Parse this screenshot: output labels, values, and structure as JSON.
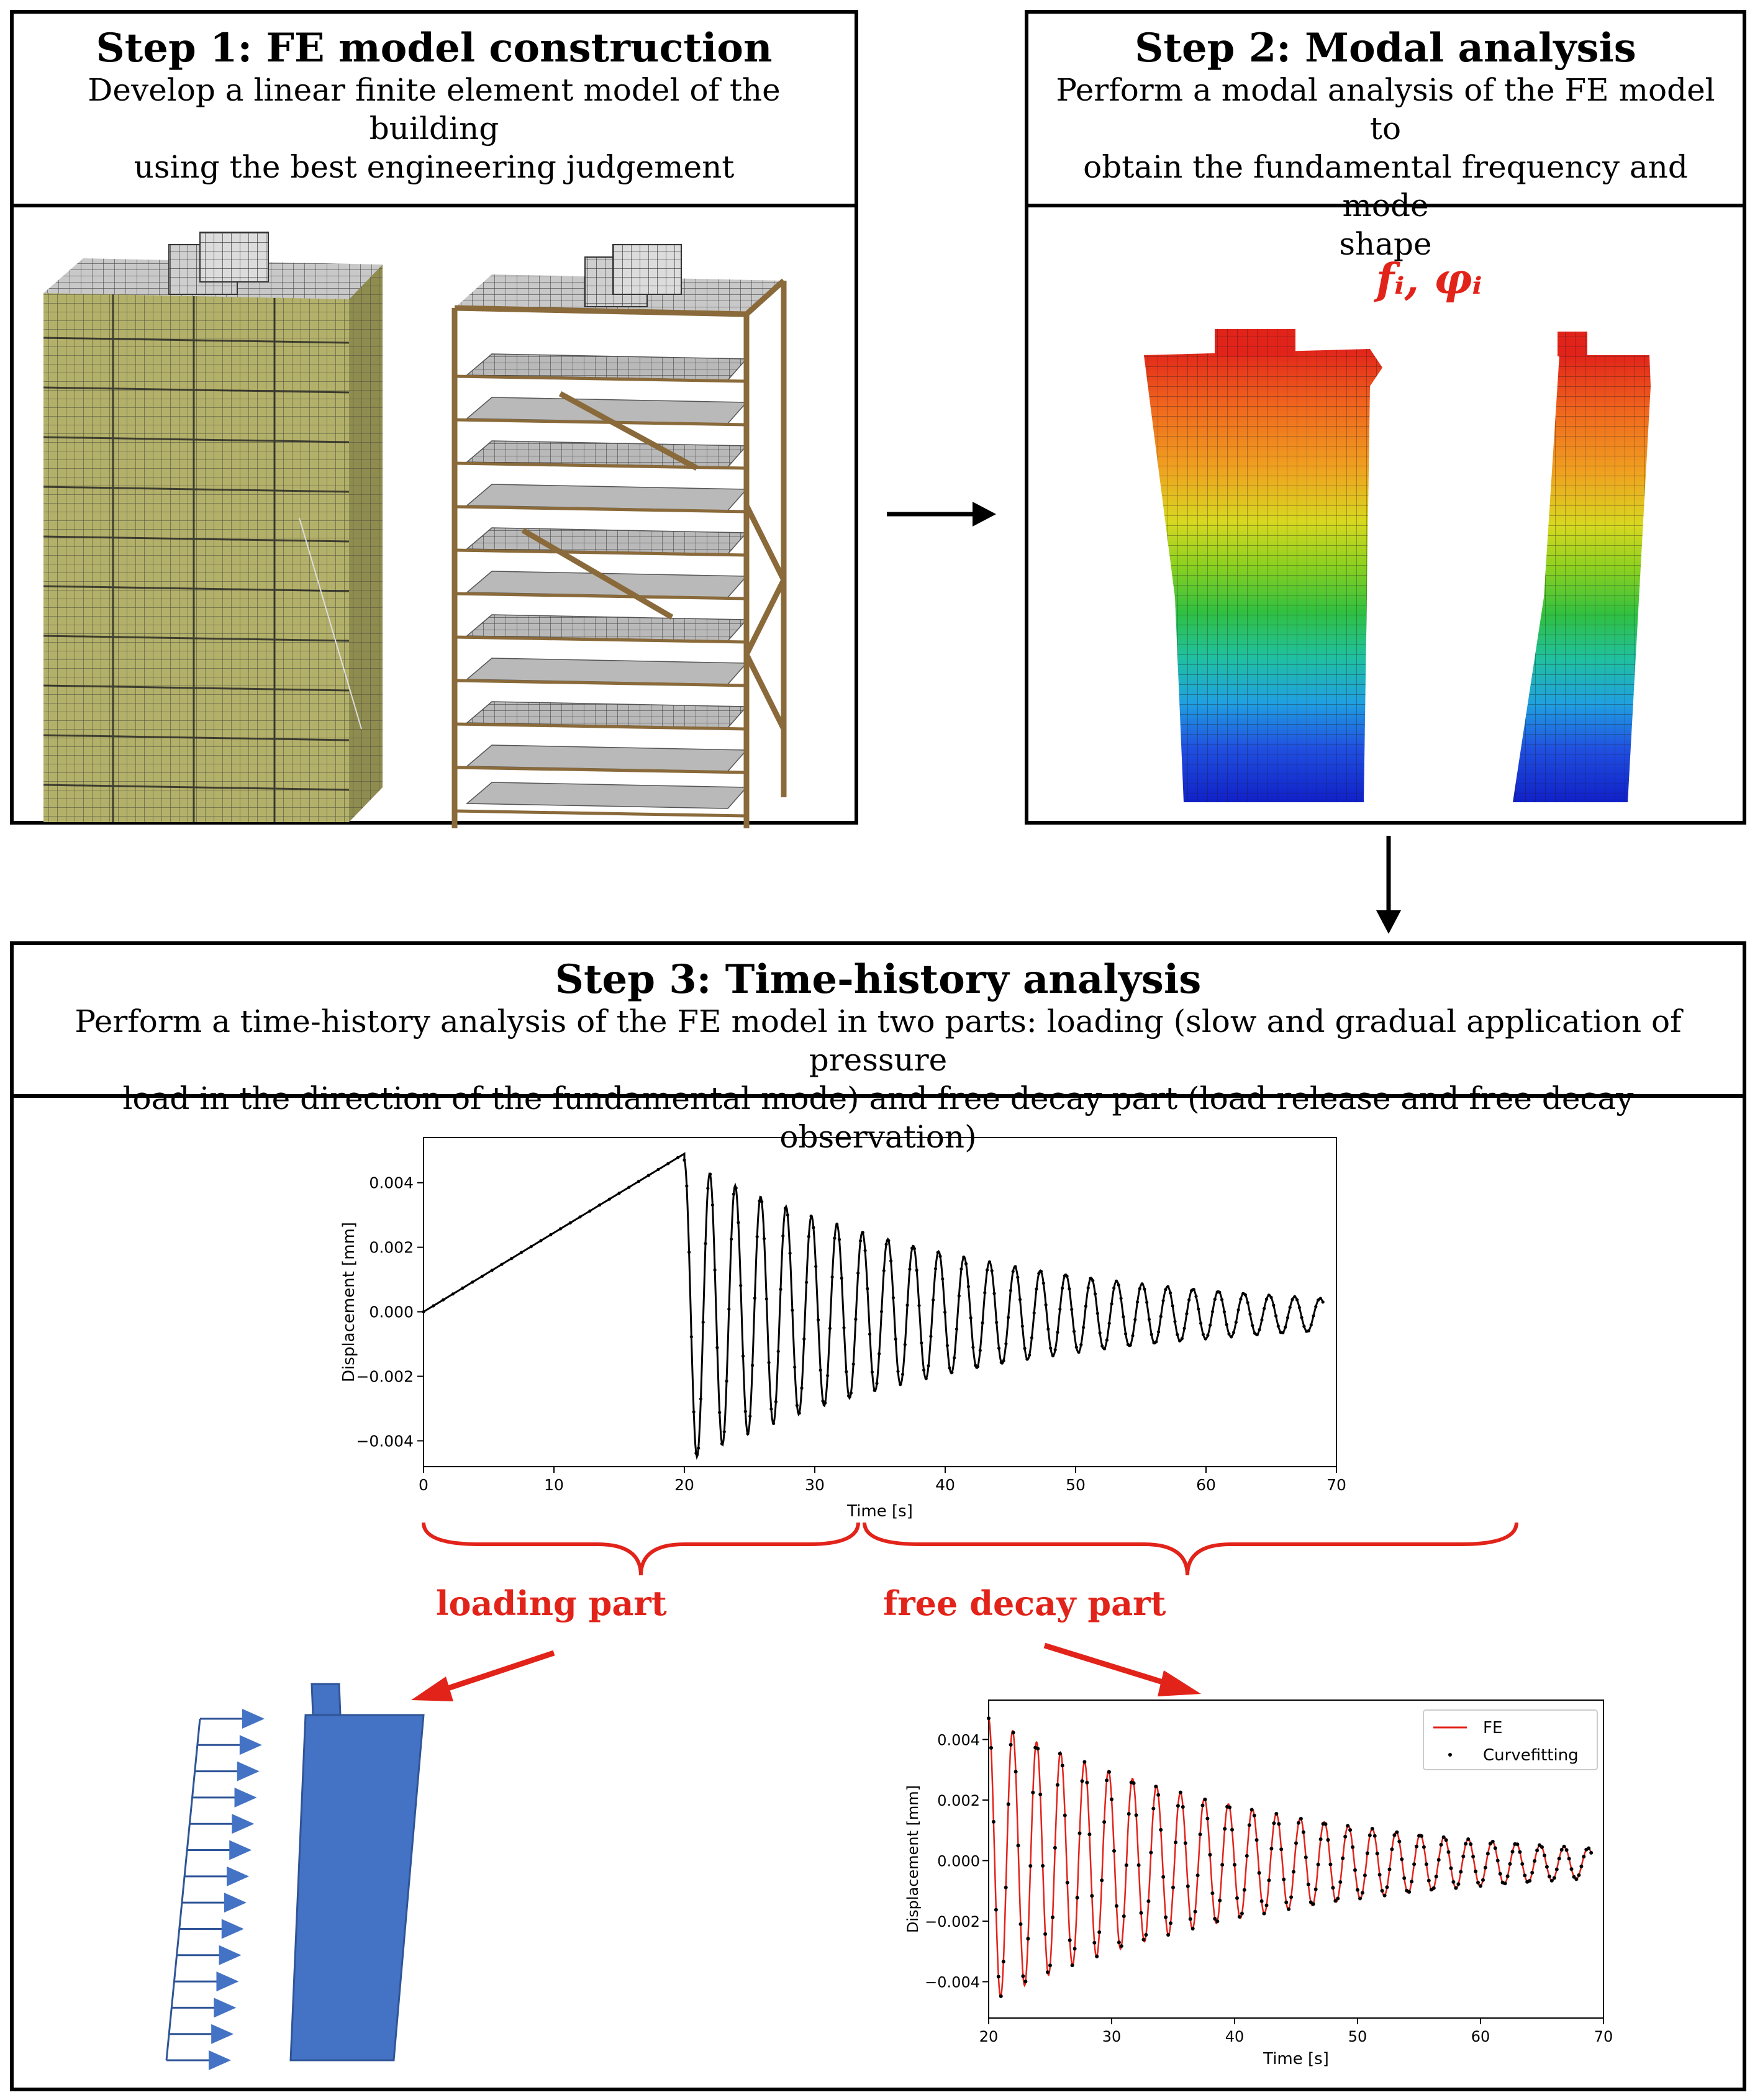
{
  "step1": {
    "title": "Step 1: FE model construction",
    "desc_line1": "Develop a linear finite element model of the building",
    "desc_line2": "using the best engineering judgement"
  },
  "step2": {
    "title": "Step 2: Modal analysis",
    "desc_line1": "Perform a modal analysis of the FE model to",
    "desc_line2": "obtain the fundamental frequency and mode",
    "desc_line3": "shape",
    "symbol": "fᵢ, φᵢ"
  },
  "step3": {
    "title": "Step 3: Time-history analysis",
    "desc_line1": "Perform a time-history analysis of the FE model in two parts: loading (slow and gradual application of pressure",
    "desc_line2": "load in the direction of the fundamental mode) and free decay part (load release and free decay observation)",
    "loading_label": "loading part",
    "decay_label": "free decay part"
  },
  "colors": {
    "accent_red": "#e2231a",
    "panel_blue": "#4472c4",
    "solid_facade": "#b3b06a",
    "frame_brown": "#8a6a3a"
  },
  "chart_data": [
    {
      "type": "line",
      "title": "",
      "xlabel": "Time [s]",
      "ylabel": "Displacement [mm]",
      "xlim": [
        0,
        70
      ],
      "ylim": [
        -0.0048,
        0.0054
      ],
      "xticks": [
        "0",
        "10",
        "20",
        "30",
        "40",
        "50",
        "60",
        "70"
      ],
      "yticks": [
        "0.004",
        "0.002",
        "0.000",
        "−0.002",
        "−0.004"
      ],
      "series": [
        {
          "name": "loading",
          "x_range": [
            0,
            20
          ],
          "y_start": 0.0,
          "y_end": 0.0049
        },
        {
          "name": "free decay",
          "x_range": [
            20,
            69
          ],
          "amplitude0": 0.0047,
          "final_amplitude": 0.0005,
          "period": 1.95,
          "offset": -0.0001
        }
      ]
    },
    {
      "type": "line",
      "title": "",
      "xlabel": "Time [s]",
      "ylabel": "Displacement [mm]",
      "xlim": [
        20,
        70
      ],
      "ylim": [
        -0.0052,
        0.0053
      ],
      "xticks": [
        "20",
        "30",
        "40",
        "50",
        "60",
        "70"
      ],
      "yticks": [
        "0.004",
        "0.002",
        "0.000",
        "−0.002",
        "−0.004"
      ],
      "legend_position": "top-right",
      "legend": [
        "FE",
        "Curvefitting"
      ],
      "series": [
        {
          "name": "FE",
          "style": "red line"
        },
        {
          "name": "Curvefitting",
          "style": "black dots"
        }
      ]
    }
  ]
}
